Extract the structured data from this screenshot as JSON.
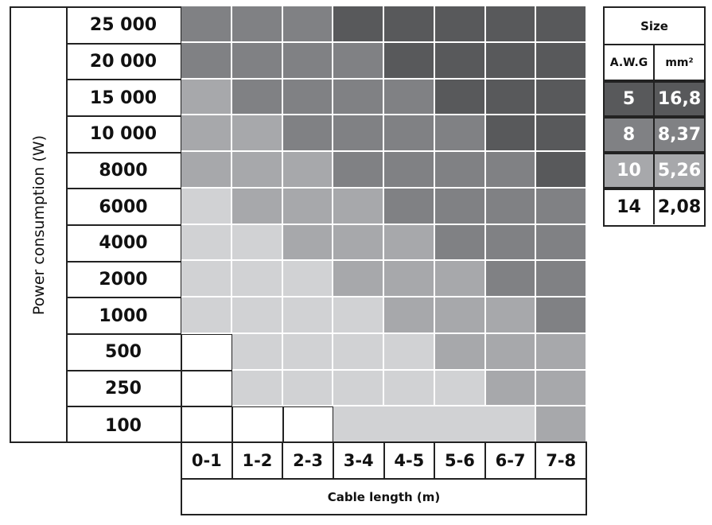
{
  "chart_data": {
    "type": "heatmap",
    "ylabel": "Power consumption (W)",
    "xlabel": "Cable length (m)",
    "y_categories": [
      "25 000",
      "20 000",
      "15 000",
      "10 000",
      "8000",
      "6000",
      "4000",
      "2000",
      "1000",
      "500",
      "250",
      "100"
    ],
    "x_categories": [
      "0-1",
      "1-2",
      "2-3",
      "3-4",
      "4-5",
      "5-6",
      "6-7",
      "7-8"
    ],
    "shade_colors": [
      "#ffffff",
      "#d1d2d4",
      "#a7a8ab",
      "#808184",
      "#58595b"
    ],
    "shade_levels": [
      [
        3,
        3,
        3,
        4,
        4,
        4,
        4,
        4
      ],
      [
        3,
        3,
        3,
        3,
        4,
        4,
        4,
        4
      ],
      [
        2,
        3,
        3,
        3,
        3,
        4,
        4,
        4
      ],
      [
        2,
        2,
        3,
        3,
        3,
        3,
        4,
        4
      ],
      [
        2,
        2,
        2,
        3,
        3,
        3,
        3,
        4
      ],
      [
        1,
        2,
        2,
        2,
        3,
        3,
        3,
        3
      ],
      [
        1,
        1,
        2,
        2,
        2,
        3,
        3,
        3
      ],
      [
        1,
        1,
        1,
        2,
        2,
        2,
        3,
        3
      ],
      [
        1,
        1,
        1,
        1,
        2,
        2,
        2,
        3
      ],
      [
        0,
        1,
        1,
        1,
        1,
        2,
        2,
        2
      ],
      [
        0,
        1,
        1,
        1,
        1,
        1,
        2,
        2
      ],
      [
        0,
        0,
        0,
        1,
        1,
        1,
        1,
        2
      ]
    ],
    "legend": {
      "title": "Size",
      "col_awg": "A.W.G",
      "col_mm2": "mm²",
      "rows": [
        {
          "awg": "5",
          "mm2": "16,8",
          "color": "#58595b",
          "text_color": "#ffffff"
        },
        {
          "awg": "8",
          "mm2": "8,37",
          "color": "#808184",
          "text_color": "#ffffff"
        },
        {
          "awg": "10",
          "mm2": "5,26",
          "color": "#a7a8ab",
          "text_color": "#ffffff"
        },
        {
          "awg": "14",
          "mm2": "2,08",
          "color": "#ffffff",
          "text_color": "#111111"
        }
      ]
    }
  }
}
